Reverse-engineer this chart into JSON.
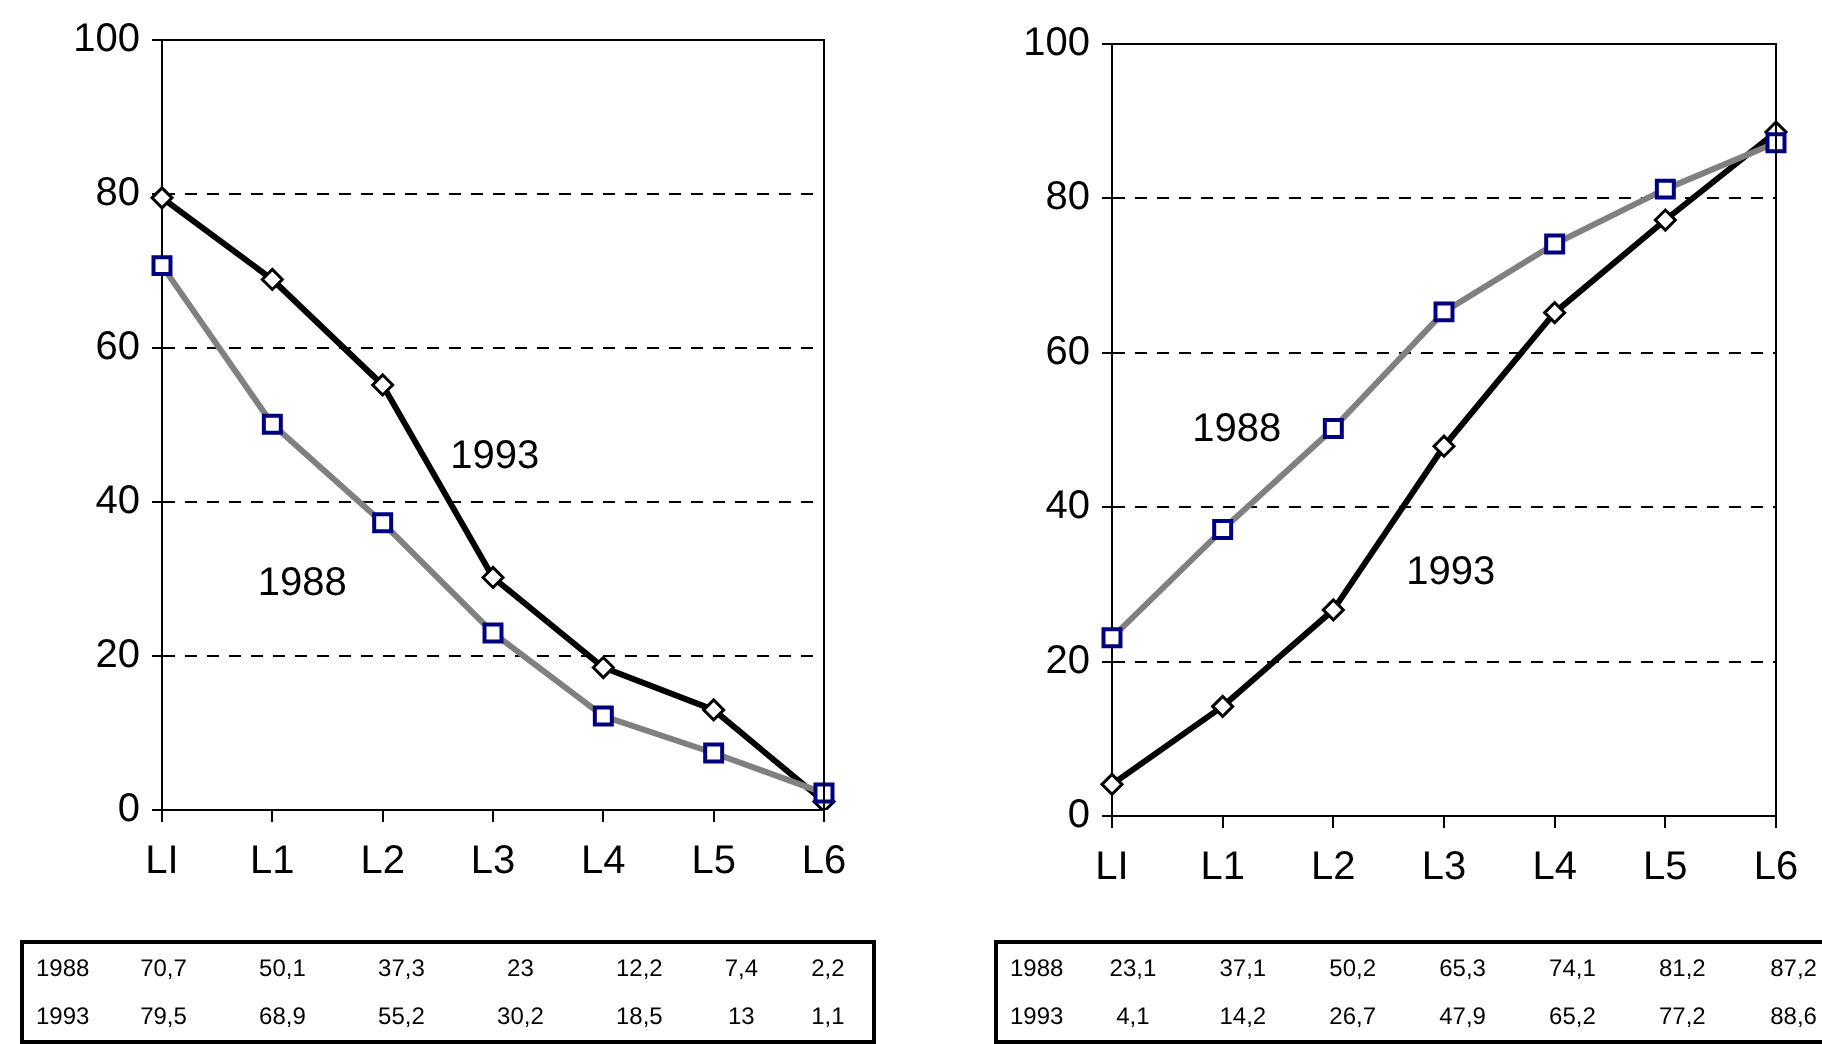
{
  "chart_data": [
    {
      "type": "line",
      "categories": [
        "LI",
        "L1",
        "L2",
        "L3",
        "L4",
        "L5",
        "L6"
      ],
      "ylim": [
        0,
        100
      ],
      "yticks": [
        0,
        20,
        40,
        60,
        80,
        100
      ],
      "grid": "y",
      "legend": false,
      "data_labels": true,
      "series": [
        {
          "name": "1988",
          "color": "#808080",
          "marker": "square",
          "values": [
            70.7,
            50.1,
            37.3,
            23,
            12.2,
            7.4,
            2.2
          ],
          "value_labels": [
            "70,7",
            "50,1",
            "37,3",
            "23",
            "12,2",
            "7,4",
            "2,2"
          ]
        },
        {
          "name": "1993",
          "color": "#000000",
          "marker": "diamond",
          "values": [
            79.5,
            68.9,
            55.2,
            30.2,
            18.5,
            13,
            1.1
          ],
          "value_labels": [
            "79,5",
            "68,9",
            "55,2",
            "30,2",
            "18,5",
            "13",
            "1,1"
          ]
        }
      ]
    },
    {
      "type": "line",
      "categories": [
        "LI",
        "L1",
        "L2",
        "L3",
        "L4",
        "L5",
        "L6"
      ],
      "ylim": [
        0,
        100
      ],
      "yticks": [
        0,
        20,
        40,
        60,
        80,
        100
      ],
      "grid": "y",
      "legend": false,
      "data_labels": true,
      "series": [
        {
          "name": "1988",
          "color": "#808080",
          "marker": "square",
          "values": [
            23.1,
            37.1,
            50.2,
            65.3,
            74.1,
            81.2,
            87.2
          ],
          "value_labels": [
            "23,1",
            "37,1",
            "50,2",
            "65,3",
            "74,1",
            "81,2",
            "87,2"
          ]
        },
        {
          "name": "1993",
          "color": "#000000",
          "marker": "diamond",
          "values": [
            4.1,
            14.2,
            26.7,
            47.9,
            65.2,
            77.2,
            88.6
          ],
          "value_labels": [
            "4,1",
            "14,2",
            "26,7",
            "47,9",
            "65,2",
            "77,2",
            "88,6"
          ]
        }
      ]
    }
  ]
}
